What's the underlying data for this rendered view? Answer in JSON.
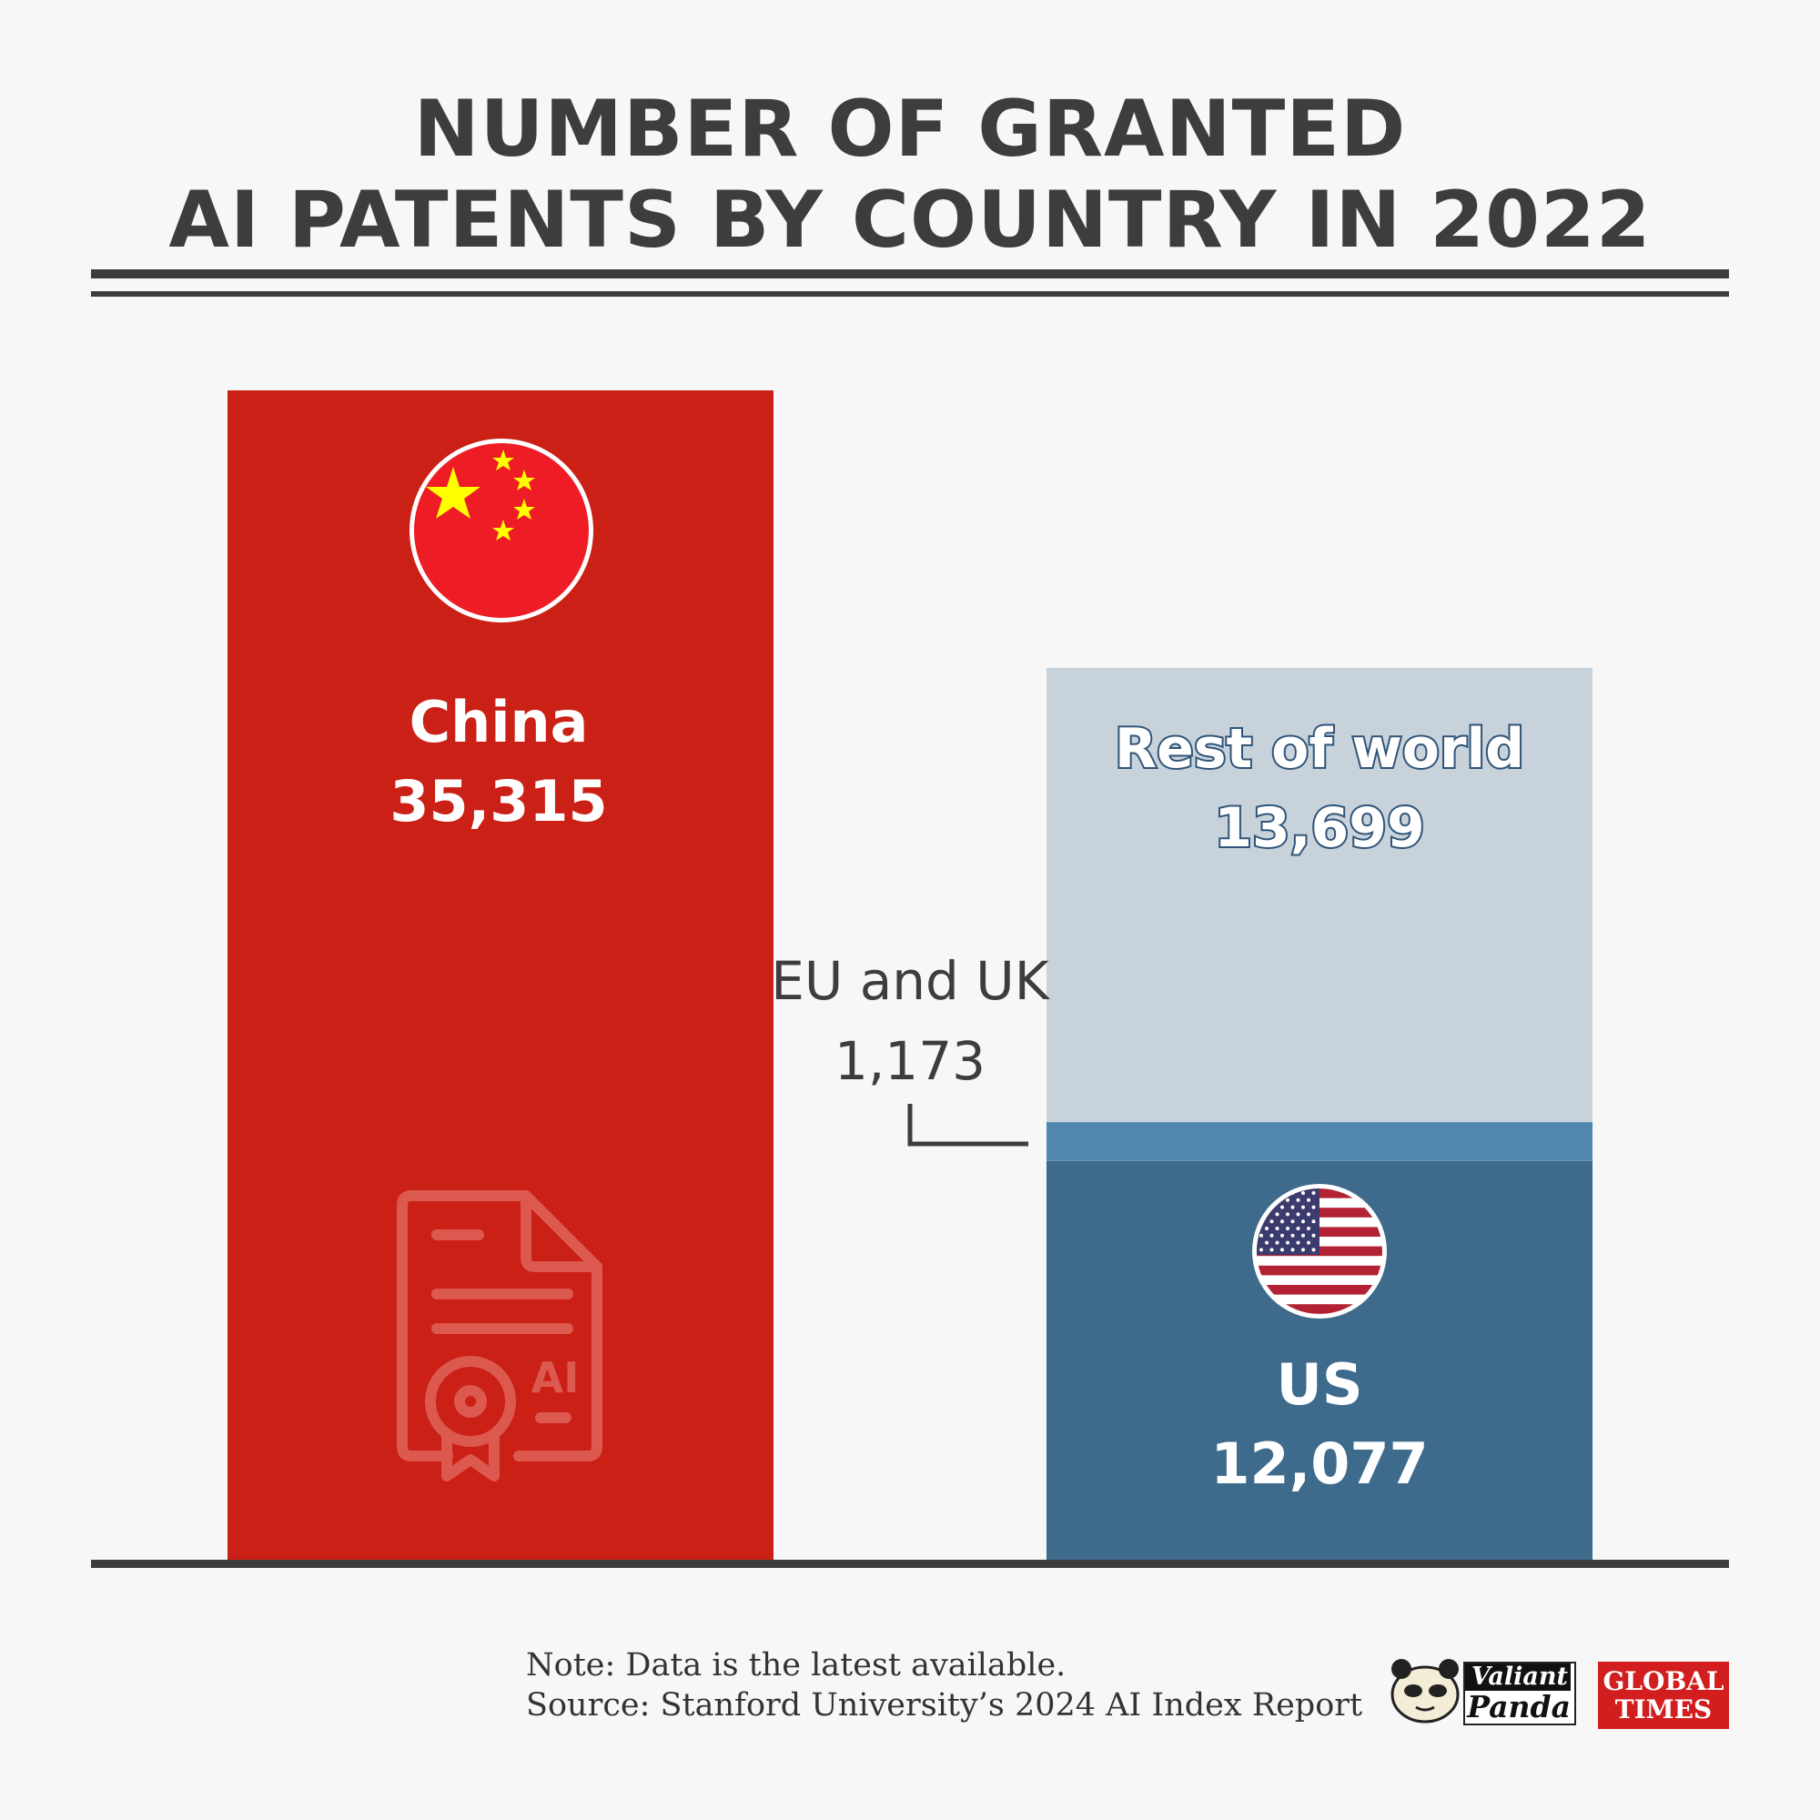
{
  "title": {
    "line1": "NUMBER OF GRANTED",
    "line2": "AI PATENTS BY COUNTRY IN 2022"
  },
  "chart_data": {
    "type": "bar",
    "title": "NUMBER OF GRANTED AI PATENTS BY COUNTRY IN 2022",
    "stacked": true,
    "ylim": [
      0,
      35315
    ],
    "grid": false,
    "bars": [
      {
        "segments": [
          {
            "name": "China",
            "value": 35315,
            "display": "35,315",
            "color": "#cb2015",
            "icon": "china-flag"
          }
        ]
      },
      {
        "segments": [
          {
            "name": "US",
            "value": 12077,
            "display": "12,077",
            "color": "#3e6a8b",
            "icon": "us-flag"
          },
          {
            "name": "EU and UK",
            "value": 1173,
            "display": "1,173",
            "color": "#5186ae"
          },
          {
            "name": "Rest of world",
            "value": 13699,
            "display": "13,699",
            "color": "#c7d2db"
          }
        ]
      }
    ]
  },
  "watermark": {
    "icon": "ai-patent-certificate-icon",
    "text": "AI"
  },
  "footer": {
    "note": "Note: Data is the latest available.",
    "source": "Source: Stanford University’s 2024 AI Index Report"
  },
  "logos": {
    "valiant_line1": "Valiant",
    "valiant_line2": "Panda",
    "gt_line1": "GLOBAL",
    "gt_line2": "TIMES"
  },
  "colors": {
    "background": "#f7f7f7",
    "text_dark": "#3d3d3d",
    "china_red": "#cb2015",
    "us_blue": "#3e6a8b",
    "eu_blue": "#5186ae",
    "row_gray": "#c7d2db"
  }
}
